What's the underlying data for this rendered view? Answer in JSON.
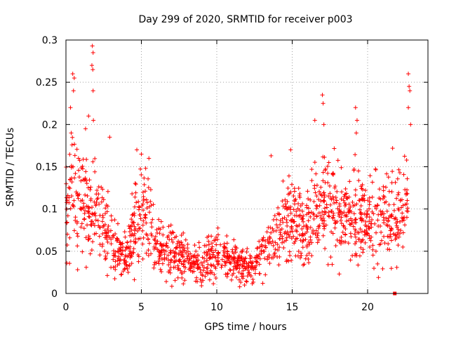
{
  "chart_data": {
    "type": "scatter",
    "title": "Day 299 of 2020, SRMTID for receiver p003",
    "xlabel": "GPS time / hours",
    "ylabel": "SRMTID / TECUs",
    "xlim": [
      0,
      24
    ],
    "ylim": [
      0,
      0.3
    ],
    "xticks": [
      0,
      5,
      10,
      15,
      20
    ],
    "yticks": [
      0,
      0.05,
      0.1,
      0.15,
      0.2,
      0.25,
      0.3
    ],
    "xtick_labels": [
      "0",
      "5",
      "10",
      "15",
      "20"
    ],
    "ytick_labels": [
      "0",
      "0.05",
      "0.1",
      "0.15",
      "0.2",
      "0.25",
      "0.3"
    ],
    "grid": true,
    "marker": "+",
    "color": "#ff0000",
    "series": [
      {
        "name": "SRMTID",
        "trend": [
          {
            "x": 0.0,
            "y": 0.09
          },
          {
            "x": 0.5,
            "y": 0.12
          },
          {
            "x": 1.0,
            "y": 0.11
          },
          {
            "x": 1.5,
            "y": 0.1
          },
          {
            "x": 2.0,
            "y": 0.09
          },
          {
            "x": 2.5,
            "y": 0.08
          },
          {
            "x": 3.0,
            "y": 0.065
          },
          {
            "x": 3.5,
            "y": 0.05
          },
          {
            "x": 4.0,
            "y": 0.045
          },
          {
            "x": 4.5,
            "y": 0.07
          },
          {
            "x": 5.0,
            "y": 0.1
          },
          {
            "x": 5.5,
            "y": 0.08
          },
          {
            "x": 6.0,
            "y": 0.055
          },
          {
            "x": 7.0,
            "y": 0.05
          },
          {
            "x": 8.0,
            "y": 0.04
          },
          {
            "x": 9.0,
            "y": 0.035
          },
          {
            "x": 10.0,
            "y": 0.045
          },
          {
            "x": 11.0,
            "y": 0.04
          },
          {
            "x": 12.0,
            "y": 0.03
          },
          {
            "x": 12.5,
            "y": 0.03
          },
          {
            "x": 13.0,
            "y": 0.045
          },
          {
            "x": 14.0,
            "y": 0.07
          },
          {
            "x": 15.0,
            "y": 0.085
          },
          {
            "x": 16.0,
            "y": 0.08
          },
          {
            "x": 17.0,
            "y": 0.1
          },
          {
            "x": 18.0,
            "y": 0.095
          },
          {
            "x": 19.0,
            "y": 0.09
          },
          {
            "x": 20.0,
            "y": 0.085
          },
          {
            "x": 21.0,
            "y": 0.1
          },
          {
            "x": 22.0,
            "y": 0.09
          },
          {
            "x": 22.7,
            "y": 0.11
          }
        ],
        "spikes": [
          {
            "x": 0.45,
            "y": 0.26
          },
          {
            "x": 0.55,
            "y": 0.255
          },
          {
            "x": 0.5,
            "y": 0.24
          },
          {
            "x": 0.3,
            "y": 0.22
          },
          {
            "x": 0.35,
            "y": 0.19
          },
          {
            "x": 1.5,
            "y": 0.21
          },
          {
            "x": 1.3,
            "y": 0.195
          },
          {
            "x": 1.75,
            "y": 0.293
          },
          {
            "x": 1.8,
            "y": 0.285
          },
          {
            "x": 1.72,
            "y": 0.27
          },
          {
            "x": 1.78,
            "y": 0.265
          },
          {
            "x": 1.8,
            "y": 0.24
          },
          {
            "x": 1.82,
            "y": 0.205
          },
          {
            "x": 2.9,
            "y": 0.185
          },
          {
            "x": 4.7,
            "y": 0.17
          },
          {
            "x": 5.0,
            "y": 0.165
          },
          {
            "x": 5.5,
            "y": 0.16
          },
          {
            "x": 13.6,
            "y": 0.163
          },
          {
            "x": 14.9,
            "y": 0.17
          },
          {
            "x": 16.5,
            "y": 0.205
          },
          {
            "x": 17.0,
            "y": 0.235
          },
          {
            "x": 17.05,
            "y": 0.225
          },
          {
            "x": 17.1,
            "y": 0.2
          },
          {
            "x": 19.2,
            "y": 0.22
          },
          {
            "x": 19.3,
            "y": 0.205
          },
          {
            "x": 19.25,
            "y": 0.19
          },
          {
            "x": 22.7,
            "y": 0.26
          },
          {
            "x": 22.75,
            "y": 0.245
          },
          {
            "x": 22.8,
            "y": 0.24
          },
          {
            "x": 22.7,
            "y": 0.22
          },
          {
            "x": 22.85,
            "y": 0.2
          }
        ],
        "outliers": [
          {
            "x": 21.8,
            "y": 0.0
          }
        ]
      }
    ]
  }
}
